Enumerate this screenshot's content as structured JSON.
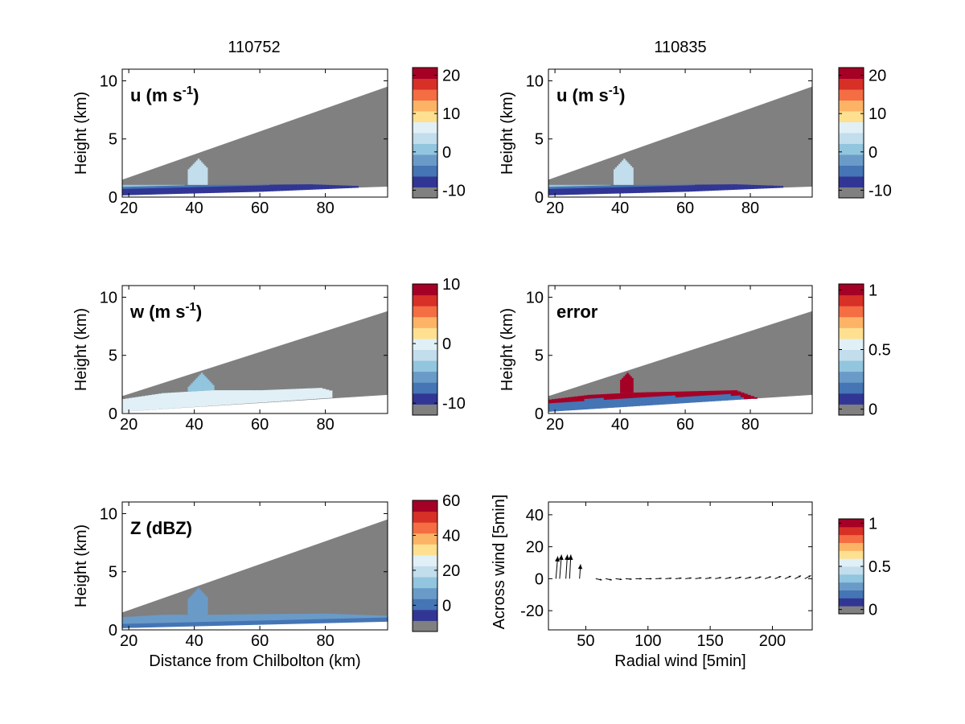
{
  "figure": {
    "column_titles": [
      "110752",
      "110835"
    ]
  },
  "colors": {
    "wedge_gray": "#808080",
    "colormap": [
      "#808080",
      "#313695",
      "#4575b4",
      "#6a9bc8",
      "#92c5de",
      "#c2ddec",
      "#e0f0f6",
      "#fee090",
      "#fdb366",
      "#f46d43",
      "#d73027",
      "#a50026"
    ]
  },
  "chart_data": [
    {
      "id": "u_110752",
      "type": "heatmap",
      "panel_label": "u (m s",
      "panel_label_sup": "-1",
      "panel_label_end": ")",
      "ylabel": "Height (km)",
      "xlabel": "",
      "xlim": [
        18,
        99
      ],
      "ylim": [
        0,
        11
      ],
      "xticks": [
        20,
        40,
        60,
        80
      ],
      "yticks": [
        0,
        5,
        10
      ],
      "colorbar": {
        "ticks": [
          "20",
          "10",
          "0",
          "-10"
        ],
        "range": [
          -12,
          22
        ]
      },
      "field": "u"
    },
    {
      "id": "u_110835",
      "type": "heatmap",
      "panel_label": "u (m s",
      "panel_label_sup": "-1",
      "panel_label_end": ")",
      "ylabel": "Height (km)",
      "xlabel": "",
      "xlim": [
        18,
        99
      ],
      "ylim": [
        0,
        11
      ],
      "xticks": [
        20,
        40,
        60,
        80
      ],
      "yticks": [
        0,
        5,
        10
      ],
      "colorbar": {
        "ticks": [
          "20",
          "10",
          "0",
          "-10"
        ],
        "range": [
          -12,
          22
        ]
      },
      "field": "u"
    },
    {
      "id": "w_110752",
      "type": "heatmap",
      "panel_label": "w (m s",
      "panel_label_sup": "-1",
      "panel_label_end": ")",
      "ylabel": "Height (km)",
      "xlabel": "",
      "xlim": [
        18,
        99
      ],
      "ylim": [
        0,
        11
      ],
      "xticks": [
        20,
        40,
        60,
        80
      ],
      "yticks": [
        0,
        5,
        10
      ],
      "colorbar": {
        "ticks": [
          "10",
          "0",
          "-10"
        ],
        "range": [
          -12,
          10
        ]
      },
      "field": "w"
    },
    {
      "id": "error_110835",
      "type": "heatmap",
      "panel_label": "error",
      "panel_label_sup": "",
      "panel_label_end": "",
      "ylabel": "Height (km)",
      "xlabel": "",
      "xlim": [
        18,
        99
      ],
      "ylim": [
        0,
        11
      ],
      "xticks": [
        20,
        40,
        60,
        80
      ],
      "yticks": [
        0,
        5,
        10
      ],
      "colorbar": {
        "ticks": [
          "1",
          "0.5",
          "0"
        ],
        "range": [
          -0.05,
          1.05
        ]
      },
      "field": "error"
    },
    {
      "id": "Z_110752",
      "type": "heatmap",
      "panel_label": "Z (dBZ)",
      "panel_label_sup": "",
      "panel_label_end": "",
      "ylabel": "Height (km)",
      "xlabel": "Distance from Chilbolton (km)",
      "xlim": [
        18,
        99
      ],
      "ylim": [
        0,
        11
      ],
      "xticks": [
        20,
        40,
        60,
        80
      ],
      "yticks": [
        0,
        5,
        10
      ],
      "colorbar": {
        "ticks": [
          "60",
          "40",
          "20",
          "0"
        ],
        "range": [
          -15,
          60
        ]
      },
      "field": "Z"
    },
    {
      "id": "wind_vectors",
      "type": "scatter",
      "panel_label": "",
      "ylabel": "Across wind [5min]",
      "xlabel": "Radial wind [5min]",
      "xlim": [
        20,
        232
      ],
      "ylim": [
        -32,
        48
      ],
      "xticks": [
        50,
        100,
        150,
        200
      ],
      "yticks": [
        -20,
        0,
        20,
        40
      ],
      "colorbar": {
        "ticks": [
          "1",
          "0.5",
          "0"
        ],
        "range": [
          -0.05,
          1.05
        ]
      },
      "vectors": [
        {
          "x": 26,
          "y": 0,
          "u": 1.5,
          "v": 14
        },
        {
          "x": 29,
          "y": 0,
          "u": 1.5,
          "v": 15
        },
        {
          "x": 34,
          "y": 0,
          "u": 1.2,
          "v": 15
        },
        {
          "x": 37,
          "y": 0,
          "u": 1.0,
          "v": 15
        },
        {
          "x": 45,
          "y": 0,
          "u": 0.8,
          "v": 9
        },
        {
          "x": 58,
          "y": 0,
          "u": 5,
          "v": -0.8
        },
        {
          "x": 66,
          "y": 0,
          "u": 5,
          "v": -0.8
        },
        {
          "x": 74,
          "y": 0,
          "u": 5,
          "v": -0.5
        },
        {
          "x": 82,
          "y": 0,
          "u": 5,
          "v": -0.3
        },
        {
          "x": 90,
          "y": 0,
          "u": 5,
          "v": 0
        },
        {
          "x": 98,
          "y": 0,
          "u": 5,
          "v": 0
        },
        {
          "x": 106,
          "y": 0,
          "u": 5,
          "v": 0.2
        },
        {
          "x": 114,
          "y": 0,
          "u": 5,
          "v": 0.3
        },
        {
          "x": 122,
          "y": 0,
          "u": 5,
          "v": 0.4
        },
        {
          "x": 130,
          "y": 0,
          "u": 5,
          "v": 0.5
        },
        {
          "x": 138,
          "y": 0,
          "u": 5,
          "v": 0.6
        },
        {
          "x": 146,
          "y": 0,
          "u": 5,
          "v": 0.7
        },
        {
          "x": 154,
          "y": 0,
          "u": 5,
          "v": 0.8
        },
        {
          "x": 162,
          "y": 0,
          "u": 5,
          "v": 0.9
        },
        {
          "x": 170,
          "y": 0,
          "u": 5,
          "v": 1.0
        },
        {
          "x": 178,
          "y": 0,
          "u": 5,
          "v": 1.1
        },
        {
          "x": 186,
          "y": 0,
          "u": 5,
          "v": 1.2
        },
        {
          "x": 194,
          "y": 0,
          "u": 5,
          "v": 1.3
        },
        {
          "x": 202,
          "y": 0,
          "u": 5,
          "v": 1.5
        },
        {
          "x": 210,
          "y": 0,
          "u": 5,
          "v": 1.7
        },
        {
          "x": 218,
          "y": 0,
          "u": 5,
          "v": 1.9
        },
        {
          "x": 226,
          "y": 0,
          "u": 5,
          "v": 2.0
        }
      ]
    }
  ]
}
